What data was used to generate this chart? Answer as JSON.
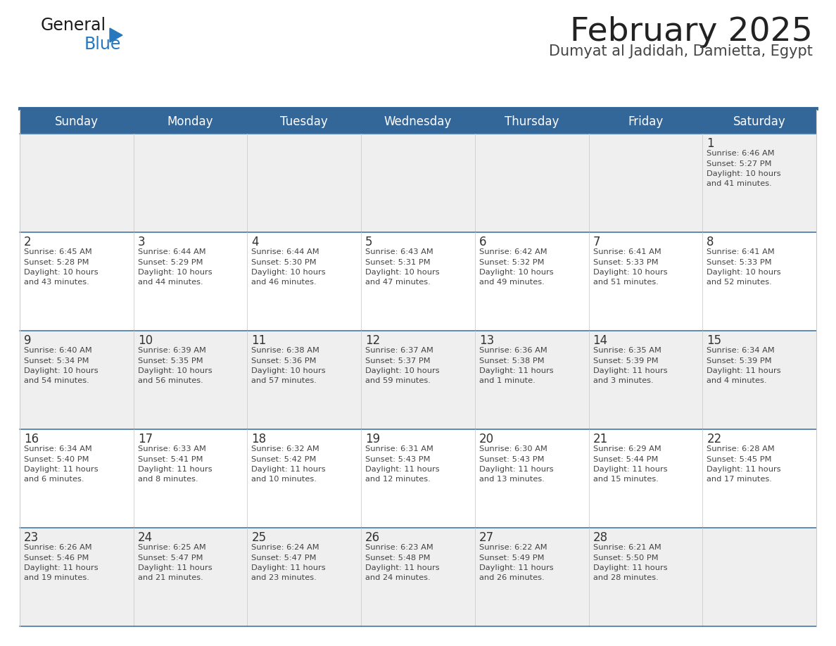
{
  "title": "February 2025",
  "subtitle": "Dumyat al Jadidah, Damietta, Egypt",
  "days_of_week": [
    "Sunday",
    "Monday",
    "Tuesday",
    "Wednesday",
    "Thursday",
    "Friday",
    "Saturday"
  ],
  "header_bg": "#336699",
  "header_text": "#FFFFFF",
  "row_bg_light": "#EFEFEF",
  "row_bg_white": "#FFFFFF",
  "row_border": "#4477AA",
  "cell_inner_border": "#CCCCCC",
  "day_num_color": "#333333",
  "info_color": "#444444",
  "title_color": "#222222",
  "subtitle_color": "#444444",
  "logo_general_color": "#1a1a1a",
  "logo_blue_color": "#2878BE",
  "calendar_data": [
    [
      null,
      null,
      null,
      null,
      null,
      null,
      {
        "day": 1,
        "sunrise": "6:46 AM",
        "sunset": "5:27 PM",
        "daylight": "10 hours and 41 minutes."
      }
    ],
    [
      {
        "day": 2,
        "sunrise": "6:45 AM",
        "sunset": "5:28 PM",
        "daylight": "10 hours and 43 minutes."
      },
      {
        "day": 3,
        "sunrise": "6:44 AM",
        "sunset": "5:29 PM",
        "daylight": "10 hours and 44 minutes."
      },
      {
        "day": 4,
        "sunrise": "6:44 AM",
        "sunset": "5:30 PM",
        "daylight": "10 hours and 46 minutes."
      },
      {
        "day": 5,
        "sunrise": "6:43 AM",
        "sunset": "5:31 PM",
        "daylight": "10 hours and 47 minutes."
      },
      {
        "day": 6,
        "sunrise": "6:42 AM",
        "sunset": "5:32 PM",
        "daylight": "10 hours and 49 minutes."
      },
      {
        "day": 7,
        "sunrise": "6:41 AM",
        "sunset": "5:33 PM",
        "daylight": "10 hours and 51 minutes."
      },
      {
        "day": 8,
        "sunrise": "6:41 AM",
        "sunset": "5:33 PM",
        "daylight": "10 hours and 52 minutes."
      }
    ],
    [
      {
        "day": 9,
        "sunrise": "6:40 AM",
        "sunset": "5:34 PM",
        "daylight": "10 hours and 54 minutes."
      },
      {
        "day": 10,
        "sunrise": "6:39 AM",
        "sunset": "5:35 PM",
        "daylight": "10 hours and 56 minutes."
      },
      {
        "day": 11,
        "sunrise": "6:38 AM",
        "sunset": "5:36 PM",
        "daylight": "10 hours and 57 minutes."
      },
      {
        "day": 12,
        "sunrise": "6:37 AM",
        "sunset": "5:37 PM",
        "daylight": "10 hours and 59 minutes."
      },
      {
        "day": 13,
        "sunrise": "6:36 AM",
        "sunset": "5:38 PM",
        "daylight": "11 hours and 1 minute."
      },
      {
        "day": 14,
        "sunrise": "6:35 AM",
        "sunset": "5:39 PM",
        "daylight": "11 hours and 3 minutes."
      },
      {
        "day": 15,
        "sunrise": "6:34 AM",
        "sunset": "5:39 PM",
        "daylight": "11 hours and 4 minutes."
      }
    ],
    [
      {
        "day": 16,
        "sunrise": "6:34 AM",
        "sunset": "5:40 PM",
        "daylight": "11 hours and 6 minutes."
      },
      {
        "day": 17,
        "sunrise": "6:33 AM",
        "sunset": "5:41 PM",
        "daylight": "11 hours and 8 minutes."
      },
      {
        "day": 18,
        "sunrise": "6:32 AM",
        "sunset": "5:42 PM",
        "daylight": "11 hours and 10 minutes."
      },
      {
        "day": 19,
        "sunrise": "6:31 AM",
        "sunset": "5:43 PM",
        "daylight": "11 hours and 12 minutes."
      },
      {
        "day": 20,
        "sunrise": "6:30 AM",
        "sunset": "5:43 PM",
        "daylight": "11 hours and 13 minutes."
      },
      {
        "day": 21,
        "sunrise": "6:29 AM",
        "sunset": "5:44 PM",
        "daylight": "11 hours and 15 minutes."
      },
      {
        "day": 22,
        "sunrise": "6:28 AM",
        "sunset": "5:45 PM",
        "daylight": "11 hours and 17 minutes."
      }
    ],
    [
      {
        "day": 23,
        "sunrise": "6:26 AM",
        "sunset": "5:46 PM",
        "daylight": "11 hours and 19 minutes."
      },
      {
        "day": 24,
        "sunrise": "6:25 AM",
        "sunset": "5:47 PM",
        "daylight": "11 hours and 21 minutes."
      },
      {
        "day": 25,
        "sunrise": "6:24 AM",
        "sunset": "5:47 PM",
        "daylight": "11 hours and 23 minutes."
      },
      {
        "day": 26,
        "sunrise": "6:23 AM",
        "sunset": "5:48 PM",
        "daylight": "11 hours and 24 minutes."
      },
      {
        "day": 27,
        "sunrise": "6:22 AM",
        "sunset": "5:49 PM",
        "daylight": "11 hours and 26 minutes."
      },
      {
        "day": 28,
        "sunrise": "6:21 AM",
        "sunset": "5:50 PM",
        "daylight": "11 hours and 28 minutes."
      },
      null
    ]
  ]
}
